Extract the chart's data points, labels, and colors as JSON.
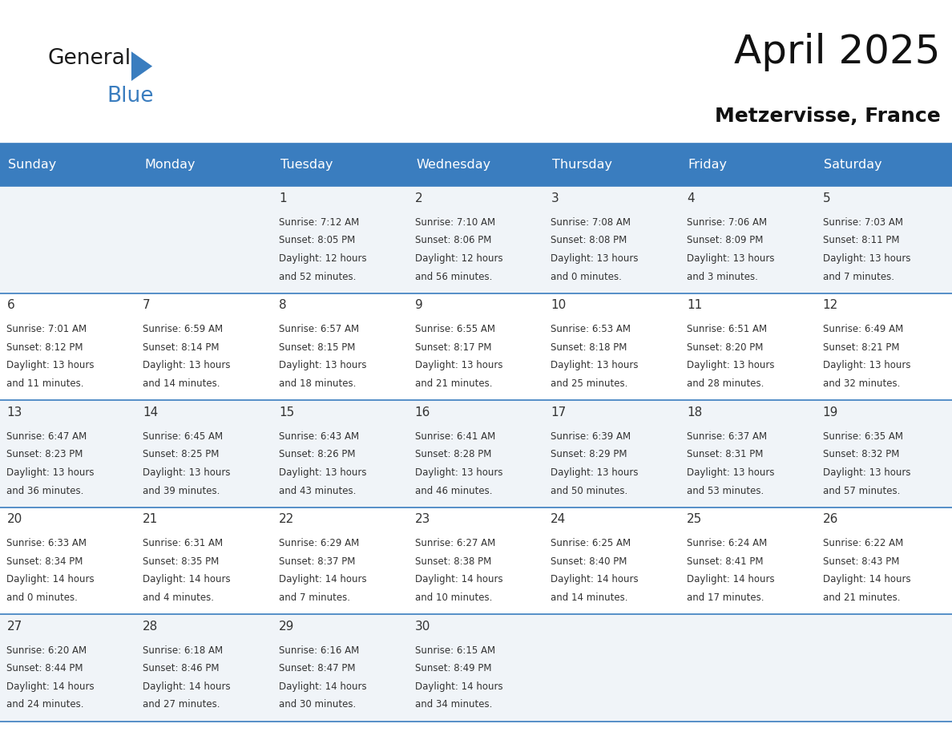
{
  "title": "April 2025",
  "subtitle": "Metzervisse, France",
  "header_color": "#3A7DBF",
  "header_text_color": "#FFFFFF",
  "divider_color": "#3A7DBF",
  "text_color": "#333333",
  "days_of_week": [
    "Sunday",
    "Monday",
    "Tuesday",
    "Wednesday",
    "Thursday",
    "Friday",
    "Saturday"
  ],
  "cell_bg_odd": "#F0F4F8",
  "cell_bg_even": "#FFFFFF",
  "calendar_data": [
    [
      {
        "day": "",
        "info": ""
      },
      {
        "day": "",
        "info": ""
      },
      {
        "day": "1",
        "info": "Sunrise: 7:12 AM\nSunset: 8:05 PM\nDaylight: 12 hours\nand 52 minutes."
      },
      {
        "day": "2",
        "info": "Sunrise: 7:10 AM\nSunset: 8:06 PM\nDaylight: 12 hours\nand 56 minutes."
      },
      {
        "day": "3",
        "info": "Sunrise: 7:08 AM\nSunset: 8:08 PM\nDaylight: 13 hours\nand 0 minutes."
      },
      {
        "day": "4",
        "info": "Sunrise: 7:06 AM\nSunset: 8:09 PM\nDaylight: 13 hours\nand 3 minutes."
      },
      {
        "day": "5",
        "info": "Sunrise: 7:03 AM\nSunset: 8:11 PM\nDaylight: 13 hours\nand 7 minutes."
      }
    ],
    [
      {
        "day": "6",
        "info": "Sunrise: 7:01 AM\nSunset: 8:12 PM\nDaylight: 13 hours\nand 11 minutes."
      },
      {
        "day": "7",
        "info": "Sunrise: 6:59 AM\nSunset: 8:14 PM\nDaylight: 13 hours\nand 14 minutes."
      },
      {
        "day": "8",
        "info": "Sunrise: 6:57 AM\nSunset: 8:15 PM\nDaylight: 13 hours\nand 18 minutes."
      },
      {
        "day": "9",
        "info": "Sunrise: 6:55 AM\nSunset: 8:17 PM\nDaylight: 13 hours\nand 21 minutes."
      },
      {
        "day": "10",
        "info": "Sunrise: 6:53 AM\nSunset: 8:18 PM\nDaylight: 13 hours\nand 25 minutes."
      },
      {
        "day": "11",
        "info": "Sunrise: 6:51 AM\nSunset: 8:20 PM\nDaylight: 13 hours\nand 28 minutes."
      },
      {
        "day": "12",
        "info": "Sunrise: 6:49 AM\nSunset: 8:21 PM\nDaylight: 13 hours\nand 32 minutes."
      }
    ],
    [
      {
        "day": "13",
        "info": "Sunrise: 6:47 AM\nSunset: 8:23 PM\nDaylight: 13 hours\nand 36 minutes."
      },
      {
        "day": "14",
        "info": "Sunrise: 6:45 AM\nSunset: 8:25 PM\nDaylight: 13 hours\nand 39 minutes."
      },
      {
        "day": "15",
        "info": "Sunrise: 6:43 AM\nSunset: 8:26 PM\nDaylight: 13 hours\nand 43 minutes."
      },
      {
        "day": "16",
        "info": "Sunrise: 6:41 AM\nSunset: 8:28 PM\nDaylight: 13 hours\nand 46 minutes."
      },
      {
        "day": "17",
        "info": "Sunrise: 6:39 AM\nSunset: 8:29 PM\nDaylight: 13 hours\nand 50 minutes."
      },
      {
        "day": "18",
        "info": "Sunrise: 6:37 AM\nSunset: 8:31 PM\nDaylight: 13 hours\nand 53 minutes."
      },
      {
        "day": "19",
        "info": "Sunrise: 6:35 AM\nSunset: 8:32 PM\nDaylight: 13 hours\nand 57 minutes."
      }
    ],
    [
      {
        "day": "20",
        "info": "Sunrise: 6:33 AM\nSunset: 8:34 PM\nDaylight: 14 hours\nand 0 minutes."
      },
      {
        "day": "21",
        "info": "Sunrise: 6:31 AM\nSunset: 8:35 PM\nDaylight: 14 hours\nand 4 minutes."
      },
      {
        "day": "22",
        "info": "Sunrise: 6:29 AM\nSunset: 8:37 PM\nDaylight: 14 hours\nand 7 minutes."
      },
      {
        "day": "23",
        "info": "Sunrise: 6:27 AM\nSunset: 8:38 PM\nDaylight: 14 hours\nand 10 minutes."
      },
      {
        "day": "24",
        "info": "Sunrise: 6:25 AM\nSunset: 8:40 PM\nDaylight: 14 hours\nand 14 minutes."
      },
      {
        "day": "25",
        "info": "Sunrise: 6:24 AM\nSunset: 8:41 PM\nDaylight: 14 hours\nand 17 minutes."
      },
      {
        "day": "26",
        "info": "Sunrise: 6:22 AM\nSunset: 8:43 PM\nDaylight: 14 hours\nand 21 minutes."
      }
    ],
    [
      {
        "day": "27",
        "info": "Sunrise: 6:20 AM\nSunset: 8:44 PM\nDaylight: 14 hours\nand 24 minutes."
      },
      {
        "day": "28",
        "info": "Sunrise: 6:18 AM\nSunset: 8:46 PM\nDaylight: 14 hours\nand 27 minutes."
      },
      {
        "day": "29",
        "info": "Sunrise: 6:16 AM\nSunset: 8:47 PM\nDaylight: 14 hours\nand 30 minutes."
      },
      {
        "day": "30",
        "info": "Sunrise: 6:15 AM\nSunset: 8:49 PM\nDaylight: 14 hours\nand 34 minutes."
      },
      {
        "day": "",
        "info": ""
      },
      {
        "day": "",
        "info": ""
      },
      {
        "day": "",
        "info": ""
      }
    ]
  ],
  "logo_text_general": "General",
  "logo_text_blue": "Blue",
  "logo_color_general": "#1a1a1a",
  "logo_color_blue": "#3A7DBF",
  "logo_triangle_color": "#3A7DBF",
  "title_fontsize": 36,
  "subtitle_fontsize": 18,
  "day_number_fontsize": 11,
  "info_fontsize": 8.5,
  "header_fontsize": 11.5
}
